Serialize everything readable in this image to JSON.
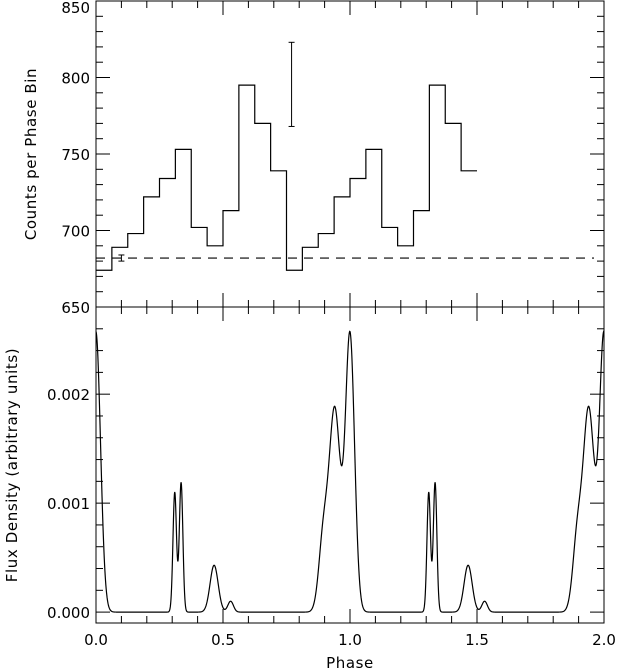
{
  "chart_data": [
    {
      "type": "line",
      "step": true,
      "xlabel": "",
      "ylabel": "Counts per Phase Bin",
      "xlim": [
        0.0,
        2.0
      ],
      "ylim": [
        650,
        850
      ],
      "x_ticks": [
        0.0,
        0.5,
        1.0,
        1.5,
        2.0
      ],
      "y_ticks": [
        650,
        700,
        750,
        800,
        850
      ],
      "y_tick_labels": [
        "650",
        "700",
        "750",
        "800",
        "850"
      ],
      "bin_width": 0.0625,
      "series": [
        {
          "x_start": 0.0,
          "values": [
            674,
            689,
            698,
            722,
            734,
            753,
            702,
            690,
            713,
            795,
            770,
            739,
            674,
            689,
            698,
            722,
            734,
            753,
            702,
            690,
            713,
            795,
            770,
            739
          ]
        }
      ],
      "baseline": 682,
      "error_bars": [
        {
          "x": 0.1,
          "y": 682,
          "low": 680,
          "high": 684
        },
        {
          "x": 0.77,
          "y": 795,
          "low": 768,
          "high": 823
        }
      ]
    },
    {
      "type": "line",
      "xlabel": "Phase",
      "ylabel": "Flux Density (arbitrary units)",
      "xlim": [
        0.0,
        2.0
      ],
      "ylim": [
        -0.0001,
        0.0028
      ],
      "x_ticks": [
        0.0,
        0.5,
        1.0,
        1.5,
        2.0
      ],
      "x_tick_labels": [
        "0.0",
        "0.5",
        "1.0",
        "1.5",
        "2.0"
      ],
      "y_ticks": [
        0.0,
        0.001,
        0.002
      ],
      "y_tick_labels": [
        "0.000",
        "0.001",
        "0.002"
      ],
      "series": [
        {
          "period": 1.0,
          "components": [
            {
              "center": 0.0,
              "amplitude": 0.00253,
              "width": 0.018
            },
            {
              "center": 0.94,
              "amplitude": 0.00185,
              "width": 0.022
            },
            {
              "center": 0.895,
              "amplitude": 0.00065,
              "width": 0.018
            },
            {
              "center": 0.31,
              "amplitude": 0.0011,
              "width": 0.007
            },
            {
              "center": 0.335,
              "amplitude": 0.00119,
              "width": 0.007
            },
            {
              "center": 0.465,
              "amplitude": 0.00043,
              "width": 0.016
            },
            {
              "center": 0.53,
              "amplitude": 0.0001,
              "width": 0.011
            }
          ]
        }
      ]
    }
  ]
}
